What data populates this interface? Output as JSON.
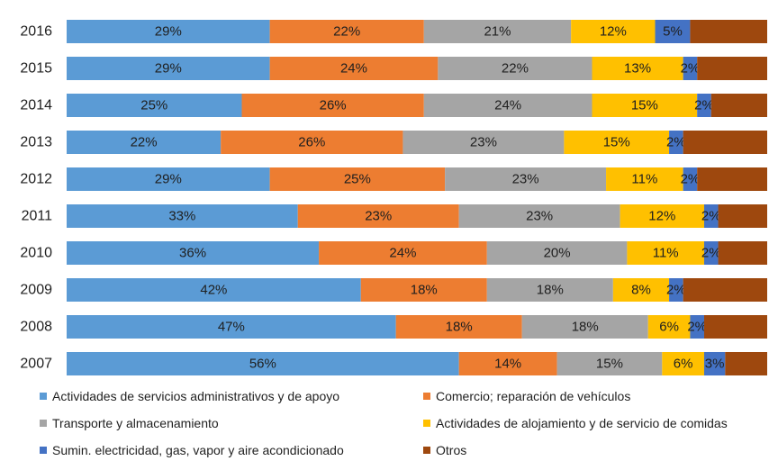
{
  "chart_data": {
    "type": "bar",
    "orientation": "horizontal",
    "stacked": "100%",
    "categories": [
      "2016",
      "2015",
      "2014",
      "2013",
      "2012",
      "2011",
      "2010",
      "2009",
      "2008",
      "2007"
    ],
    "series": [
      {
        "name": "Actividades de servicios administrativos y de apoyo",
        "color": "#5B9BD5",
        "values": [
          29,
          29,
          25,
          22,
          29,
          33,
          36,
          42,
          47,
          56
        ],
        "labels": [
          "29%",
          "29%",
          "25%",
          "22%",
          "29%",
          "33%",
          "36%",
          "42%",
          "47%",
          "56%"
        ]
      },
      {
        "name": "Comercio; reparación de vehículos",
        "color": "#ED7D31",
        "values": [
          22,
          24,
          26,
          26,
          25,
          23,
          24,
          18,
          18,
          14
        ],
        "labels": [
          "22%",
          "24%",
          "26%",
          "26%",
          "25%",
          "23%",
          "24%",
          "18%",
          "18%",
          "14%"
        ]
      },
      {
        "name": "Transporte y almacenamiento",
        "color": "#A5A5A5",
        "values": [
          21,
          22,
          24,
          23,
          23,
          23,
          20,
          18,
          18,
          15
        ],
        "labels": [
          "21%",
          "22%",
          "24%",
          "23%",
          "23%",
          "23%",
          "20%",
          "18%",
          "18%",
          "15%"
        ]
      },
      {
        "name": "Actividades de alojamiento y de servicio de comidas",
        "color": "#FFC000",
        "values": [
          12,
          13,
          15,
          15,
          11,
          12,
          11,
          8,
          6,
          6
        ],
        "labels": [
          "12%",
          "13%",
          "15%",
          "15%",
          "11%",
          "12%",
          "11%",
          "8%",
          "6%",
          "6%"
        ]
      },
      {
        "name": "Sumin. electricidad, gas, vapor y aire acondicionado",
        "color": "#4472C4",
        "values": [
          5,
          2,
          2,
          2,
          2,
          2,
          2,
          2,
          2,
          3
        ],
        "labels": [
          "5%",
          "2%",
          "2%",
          "2%",
          "2%",
          "2%",
          "2%",
          "2%",
          "2%",
          "3%"
        ]
      },
      {
        "name": "Otros",
        "color": "#9E480E",
        "values": [
          11,
          10,
          8,
          12,
          10,
          7,
          7,
          12,
          9,
          6
        ],
        "labels": [
          "",
          "",
          "",
          "",
          "",
          "",
          "",
          "",
          "",
          ""
        ]
      }
    ],
    "xlim": [
      0,
      100
    ],
    "grid": false,
    "legend_position": "bottom"
  }
}
